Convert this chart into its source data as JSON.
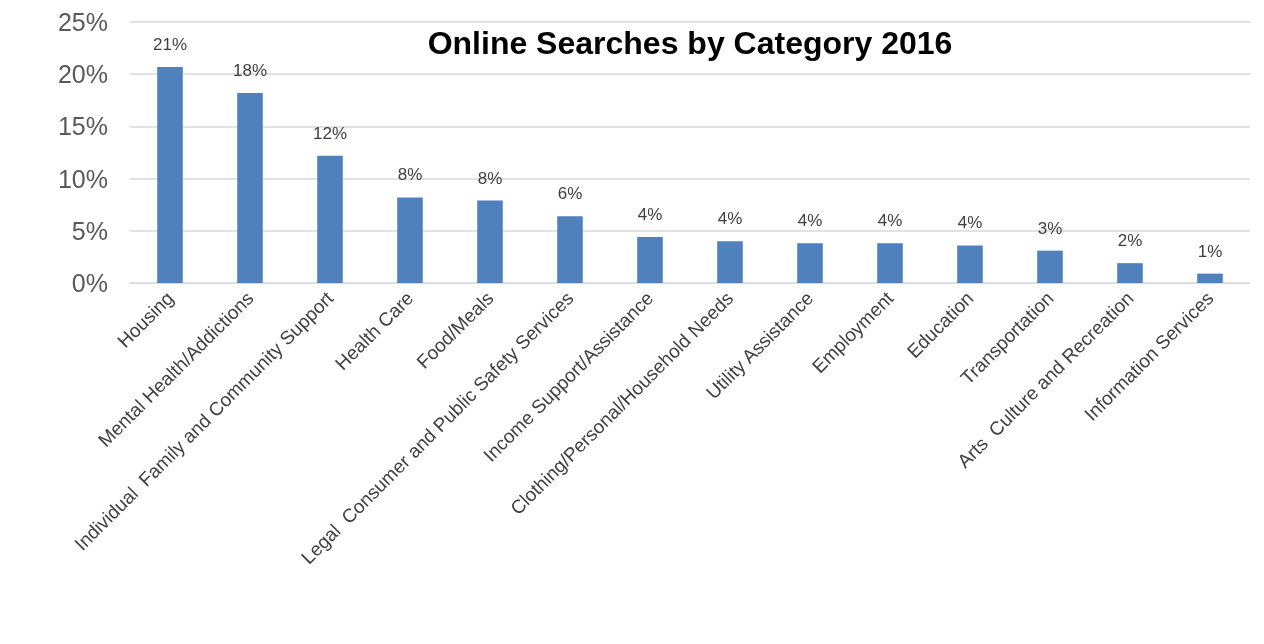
{
  "chart_data": {
    "type": "bar",
    "title": "Online Searches by Category 2016",
    "categories": [
      "Housing",
      "Mental Health/Addictions",
      "Individual  Family and Community Support",
      "Health Care",
      "Food/Meals",
      "Legal  Consumer and Public Safety Services",
      "Income Support/Assistance",
      "Clothing/Personal/Household Needs",
      "Utility Assistance",
      "Employment",
      "Education",
      "Transportation",
      "Arts  Culture and Recreation",
      "Information Services"
    ],
    "values": [
      20.7,
      18.2,
      12.2,
      8.2,
      7.9,
      6.4,
      4.4,
      4.0,
      3.8,
      3.8,
      3.6,
      3.1,
      1.9,
      0.9
    ],
    "value_labels": [
      "21%",
      "18%",
      "12%",
      "8%",
      "8%",
      "6%",
      "4%",
      "4%",
      "4%",
      "4%",
      "4%",
      "3%",
      "2%",
      "1%"
    ],
    "color": "#4f81bd",
    "ylim": [
      0,
      25
    ],
    "yticks": [
      {
        "value": 0,
        "label": "0%"
      },
      {
        "value": 5,
        "label": "5%"
      },
      {
        "value": 10,
        "label": "10%"
      },
      {
        "value": 15,
        "label": "15%"
      },
      {
        "value": 20,
        "label": "20%"
      },
      {
        "value": 25,
        "label": "25%"
      }
    ],
    "grid": "y"
  }
}
